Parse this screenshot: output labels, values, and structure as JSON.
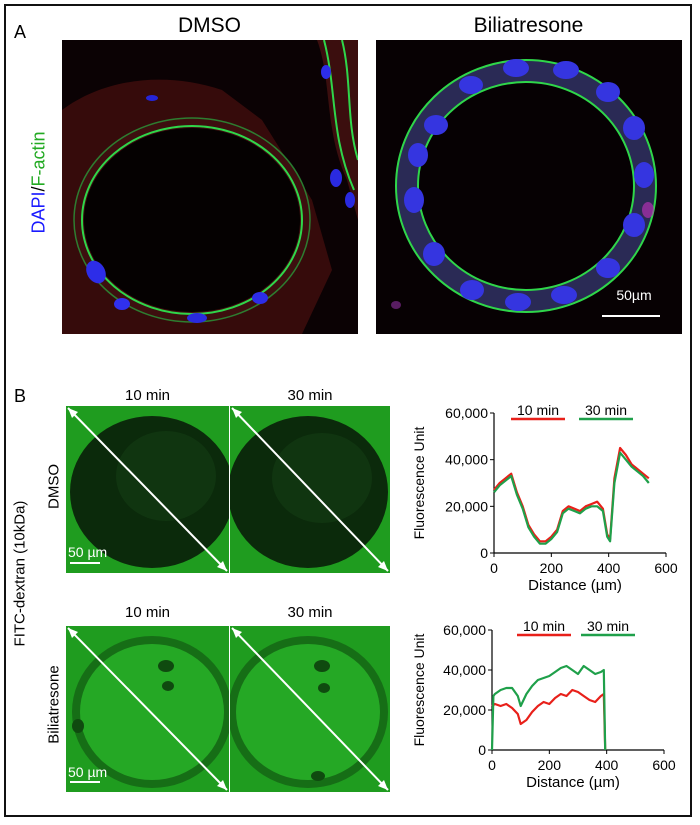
{
  "panel_a": {
    "letter": "A",
    "columns": [
      "DMSO",
      "Biliatresone"
    ],
    "stain_label": {
      "blue": "DAPI",
      "sep": "/",
      "green": "F-actin"
    },
    "scale_bar": "50µm",
    "colors": {
      "blue": "#1a1aff",
      "green": "#22aa22"
    }
  },
  "panel_b": {
    "letter": "B",
    "time_labels": [
      "10 min",
      "30 min"
    ],
    "row_label": "FITC-dextran (10kDa)",
    "rows": [
      "DMSO",
      "Biliatresone"
    ],
    "scale_bar": "50 µm"
  },
  "chart_data": [
    {
      "type": "line",
      "ylabel": "Fluorescence Unit",
      "xlabel": "Distance (µm)",
      "xlim": [
        0,
        600
      ],
      "ylim": [
        0,
        60000
      ],
      "xticks": [
        "0",
        "200",
        "400",
        "600"
      ],
      "yticks": [
        "0",
        "20,000",
        "40,000",
        "60,000"
      ],
      "legend": [
        "10 min",
        "30 min"
      ],
      "series": [
        {
          "name": "10 min",
          "color": "#e8201a",
          "x": [
            0,
            20,
            40,
            60,
            80,
            100,
            120,
            140,
            160,
            180,
            200,
            220,
            240,
            260,
            280,
            300,
            320,
            340,
            360,
            380,
            395,
            405,
            420,
            440,
            460,
            480,
            500,
            520,
            540
          ],
          "y": [
            27000,
            30000,
            32000,
            34000,
            26000,
            20000,
            12000,
            8000,
            5000,
            5000,
            7000,
            10000,
            18000,
            20000,
            19000,
            18000,
            20000,
            21000,
            22000,
            19000,
            8000,
            6000,
            32000,
            45000,
            42000,
            38000,
            36000,
            34000,
            32000
          ]
        },
        {
          "name": "30 min",
          "color": "#1fa04a",
          "x": [
            0,
            20,
            40,
            60,
            80,
            100,
            120,
            140,
            160,
            180,
            200,
            220,
            240,
            260,
            280,
            300,
            320,
            340,
            360,
            380,
            395,
            405,
            420,
            440,
            460,
            480,
            500,
            520,
            540
          ],
          "y": [
            26000,
            29000,
            31000,
            33000,
            25000,
            19000,
            11000,
            7000,
            4000,
            4000,
            6000,
            9000,
            17000,
            19000,
            18000,
            17000,
            19000,
            20000,
            20000,
            18000,
            7000,
            5000,
            30000,
            43000,
            40000,
            37000,
            35000,
            33000,
            30000
          ]
        }
      ]
    },
    {
      "type": "line",
      "ylabel": "Fluorescence Unit",
      "xlabel": "Distance (µm)",
      "xlim": [
        0,
        600
      ],
      "ylim": [
        0,
        60000
      ],
      "xticks": [
        "0",
        "200",
        "400",
        "600"
      ],
      "yticks": [
        "0",
        "20,000",
        "40,000",
        "60,000"
      ],
      "legend": [
        "10 min",
        "30 min"
      ],
      "series": [
        {
          "name": "10 min",
          "color": "#e8201a",
          "x": [
            0,
            10,
            30,
            50,
            70,
            90,
            100,
            120,
            140,
            160,
            180,
            200,
            220,
            240,
            260,
            280,
            300,
            320,
            340,
            360,
            380,
            390,
            395
          ],
          "y": [
            22000,
            23000,
            22000,
            23000,
            21000,
            18000,
            13000,
            15000,
            19000,
            22000,
            24000,
            23000,
            26000,
            28000,
            27000,
            30000,
            29000,
            27000,
            25000,
            24000,
            27000,
            28000,
            0
          ]
        },
        {
          "name": "30 min",
          "color": "#1fa04a",
          "x": [
            0,
            5,
            10,
            30,
            50,
            70,
            90,
            100,
            120,
            140,
            160,
            180,
            200,
            220,
            240,
            260,
            280,
            300,
            320,
            340,
            360,
            380,
            390,
            395
          ],
          "y": [
            0,
            27000,
            28000,
            30000,
            31000,
            31000,
            27000,
            22000,
            28000,
            32000,
            35000,
            36000,
            37000,
            39000,
            41000,
            42000,
            40000,
            38000,
            42000,
            40000,
            38000,
            39000,
            40000,
            0
          ]
        }
      ]
    }
  ]
}
